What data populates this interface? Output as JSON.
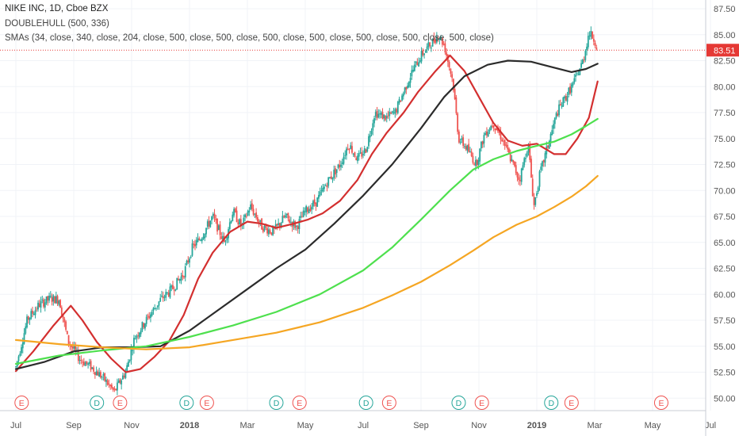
{
  "header": {
    "symbol_line": "NIKE INC, 1D, Cboe BZX",
    "indicator_1": "DOUBLEHULL (500, 336)",
    "indicator_2": "SMAs (34, close, 340, close, 204, close, 500, close, 500, close, 500, close, 500, close, 500, close, 500, close, 500, close)"
  },
  "chart_data": {
    "type": "candlestick",
    "title": "NIKE INC, 1D, Cboe BZX",
    "y_ticks": [
      "87.50",
      "85.00",
      "82.50",
      "80.00",
      "77.50",
      "75.00",
      "72.50",
      "70.00",
      "67.50",
      "65.00",
      "62.50",
      "60.00",
      "57.50",
      "55.00",
      "52.50",
      "50.00"
    ],
    "ylim": [
      49.2,
      88.2
    ],
    "x_ticks": [
      "Jul",
      "Sep",
      "Nov",
      "2018",
      "Mar",
      "May",
      "Jul",
      "Sep",
      "Nov",
      "2019",
      "Mar",
      "May",
      "Jul"
    ],
    "x_range_months": [
      0,
      26
    ],
    "x_tick_months": [
      0,
      2,
      4,
      6,
      8,
      10,
      12,
      14,
      16,
      18,
      20,
      22,
      24
    ],
    "bold_x_ticks": [
      "2018",
      "2019"
    ],
    "last_price": {
      "label": "83.51",
      "value": 83.51,
      "color": "#e53935"
    },
    "price_path": [
      [
        0.0,
        53.0
      ],
      [
        0.4,
        57.6
      ],
      [
        0.8,
        59.0
      ],
      [
        1.2,
        59.6
      ],
      [
        1.5,
        59.5
      ],
      [
        1.8,
        55.5
      ],
      [
        2.2,
        53.8
      ],
      [
        2.6,
        53.0
      ],
      [
        3.0,
        52.0
      ],
      [
        3.4,
        50.6
      ],
      [
        3.8,
        52.6
      ],
      [
        4.1,
        55.8
      ],
      [
        4.5,
        57.5
      ],
      [
        5.0,
        59.5
      ],
      [
        5.4,
        60.5
      ],
      [
        5.8,
        62.0
      ],
      [
        6.1,
        64.5
      ],
      [
        6.4,
        65.5
      ],
      [
        6.8,
        67.5
      ],
      [
        7.2,
        65.0
      ],
      [
        7.5,
        68.0
      ],
      [
        7.8,
        66.5
      ],
      [
        8.1,
        68.5
      ],
      [
        8.5,
        66.5
      ],
      [
        8.9,
        66.0
      ],
      [
        9.3,
        67.5
      ],
      [
        9.7,
        66.5
      ],
      [
        10.0,
        68.0
      ],
      [
        10.4,
        69.0
      ],
      [
        10.8,
        71.0
      ],
      [
        11.2,
        72.5
      ],
      [
        11.5,
        74.5
      ],
      [
        11.8,
        73.0
      ],
      [
        12.1,
        74.0
      ],
      [
        12.4,
        77.5
      ],
      [
        12.8,
        77.0
      ],
      [
        13.1,
        77.5
      ],
      [
        13.4,
        79.5
      ],
      [
        13.7,
        81.5
      ],
      [
        14.0,
        83.0
      ],
      [
        14.3,
        84.0
      ],
      [
        14.6,
        85.0
      ],
      [
        14.8,
        84.0
      ],
      [
        15.1,
        80.5
      ],
      [
        15.3,
        75.0
      ],
      [
        15.6,
        74.0
      ],
      [
        15.9,
        72.5
      ],
      [
        16.2,
        75.5
      ],
      [
        16.5,
        76.5
      ],
      [
        16.8,
        75.0
      ],
      [
        17.1,
        73.0
      ],
      [
        17.4,
        71.0
      ],
      [
        17.7,
        74.5
      ],
      [
        17.9,
        68.5
      ],
      [
        18.1,
        71.5
      ],
      [
        18.4,
        74.5
      ],
      [
        18.7,
        77.5
      ],
      [
        19.0,
        79.0
      ],
      [
        19.3,
        80.5
      ],
      [
        19.6,
        82.5
      ],
      [
        19.8,
        85.2
      ],
      [
        20.0,
        84.5
      ],
      [
        20.1,
        83.5
      ]
    ],
    "events": [
      {
        "label": "E",
        "month": 0.2,
        "color": "#ef5350"
      },
      {
        "label": "D",
        "month": 2.8,
        "color": "#26a69a"
      },
      {
        "label": "E",
        "month": 3.6,
        "color": "#ef5350"
      },
      {
        "label": "D",
        "month": 5.9,
        "color": "#26a69a"
      },
      {
        "label": "E",
        "month": 6.6,
        "color": "#ef5350"
      },
      {
        "label": "D",
        "month": 9.0,
        "color": "#26a69a"
      },
      {
        "label": "E",
        "month": 9.8,
        "color": "#ef5350"
      },
      {
        "label": "D",
        "month": 12.1,
        "color": "#26a69a"
      },
      {
        "label": "E",
        "month": 12.9,
        "color": "#ef5350"
      },
      {
        "label": "D",
        "month": 15.3,
        "color": "#26a69a"
      },
      {
        "label": "E",
        "month": 16.1,
        "color": "#ef5350"
      },
      {
        "label": "D",
        "month": 18.5,
        "color": "#26a69a"
      },
      {
        "label": "E",
        "month": 19.2,
        "color": "#ef5350"
      },
      {
        "label": "E",
        "month": 22.3,
        "color": "#ef5350"
      }
    ],
    "lines": [
      {
        "color": "#d32f2f",
        "width": 2.2,
        "points": [
          [
            0.0,
            52.6
          ],
          [
            0.6,
            54.5
          ],
          [
            1.3,
            57.0
          ],
          [
            1.9,
            58.9
          ],
          [
            2.3,
            57.5
          ],
          [
            2.8,
            55.4
          ],
          [
            3.3,
            53.8
          ],
          [
            3.8,
            52.5
          ],
          [
            4.3,
            52.8
          ],
          [
            4.8,
            54.0
          ],
          [
            5.3,
            55.5
          ],
          [
            5.8,
            58.0
          ],
          [
            6.3,
            61.5
          ],
          [
            6.8,
            64.0
          ],
          [
            7.4,
            66.0
          ],
          [
            8.0,
            67.0
          ],
          [
            8.5,
            66.8
          ],
          [
            9.0,
            66.4
          ],
          [
            9.6,
            66.8
          ],
          [
            10.1,
            67.2
          ],
          [
            10.6,
            67.8
          ],
          [
            11.2,
            69.0
          ],
          [
            11.8,
            71.0
          ],
          [
            12.3,
            73.5
          ],
          [
            12.8,
            75.5
          ],
          [
            13.4,
            77.5
          ],
          [
            13.9,
            79.5
          ],
          [
            14.5,
            81.5
          ],
          [
            15.0,
            83.0
          ],
          [
            15.5,
            81.5
          ],
          [
            16.0,
            79.0
          ],
          [
            16.5,
            76.5
          ],
          [
            17.0,
            74.8
          ],
          [
            17.5,
            74.3
          ],
          [
            18.0,
            74.5
          ],
          [
            18.6,
            73.5
          ],
          [
            19.0,
            73.5
          ],
          [
            19.4,
            75.0
          ],
          [
            19.8,
            77.0
          ],
          [
            20.1,
            80.5
          ]
        ]
      },
      {
        "color": "#2b2b2b",
        "width": 2.2,
        "points": [
          [
            0.0,
            52.8
          ],
          [
            1.0,
            53.5
          ],
          [
            2.0,
            54.5
          ],
          [
            3.0,
            54.9
          ],
          [
            4.0,
            54.9
          ],
          [
            5.0,
            55.0
          ],
          [
            6.0,
            56.5
          ],
          [
            7.0,
            58.5
          ],
          [
            8.0,
            60.5
          ],
          [
            9.0,
            62.5
          ],
          [
            10.0,
            64.3
          ],
          [
            11.0,
            66.8
          ],
          [
            12.0,
            69.5
          ],
          [
            13.0,
            72.5
          ],
          [
            14.0,
            76.0
          ],
          [
            14.8,
            79.0
          ],
          [
            15.5,
            81.0
          ],
          [
            16.3,
            82.1
          ],
          [
            17.0,
            82.5
          ],
          [
            17.8,
            82.4
          ],
          [
            18.5,
            81.9
          ],
          [
            19.2,
            81.4
          ],
          [
            19.7,
            81.7
          ],
          [
            20.1,
            82.2
          ]
        ]
      },
      {
        "color": "#4ee04e",
        "width": 2.2,
        "points": [
          [
            0.0,
            53.3
          ],
          [
            1.5,
            54.1
          ],
          [
            3.0,
            54.6
          ],
          [
            4.5,
            55.0
          ],
          [
            6.0,
            55.9
          ],
          [
            7.5,
            57.0
          ],
          [
            9.0,
            58.3
          ],
          [
            10.5,
            60.0
          ],
          [
            12.0,
            62.3
          ],
          [
            13.0,
            64.5
          ],
          [
            14.0,
            67.2
          ],
          [
            15.0,
            70.0
          ],
          [
            15.8,
            72.0
          ],
          [
            16.5,
            73.0
          ],
          [
            17.3,
            73.8
          ],
          [
            18.0,
            74.3
          ],
          [
            18.6,
            74.7
          ],
          [
            19.2,
            75.4
          ],
          [
            19.7,
            76.2
          ],
          [
            20.1,
            76.9
          ]
        ]
      },
      {
        "color": "#f5a623",
        "width": 2.2,
        "points": [
          [
            0.0,
            55.6
          ],
          [
            1.5,
            55.2
          ],
          [
            3.0,
            54.9
          ],
          [
            4.5,
            54.7
          ],
          [
            6.0,
            54.9
          ],
          [
            7.5,
            55.6
          ],
          [
            9.0,
            56.3
          ],
          [
            10.5,
            57.3
          ],
          [
            12.0,
            58.7
          ],
          [
            13.0,
            59.9
          ],
          [
            14.0,
            61.2
          ],
          [
            15.0,
            62.8
          ],
          [
            15.8,
            64.2
          ],
          [
            16.5,
            65.5
          ],
          [
            17.3,
            66.7
          ],
          [
            18.0,
            67.5
          ],
          [
            18.6,
            68.4
          ],
          [
            19.2,
            69.4
          ],
          [
            19.7,
            70.4
          ],
          [
            20.1,
            71.4
          ]
        ]
      }
    ],
    "grid": true,
    "axis_position": "right"
  }
}
